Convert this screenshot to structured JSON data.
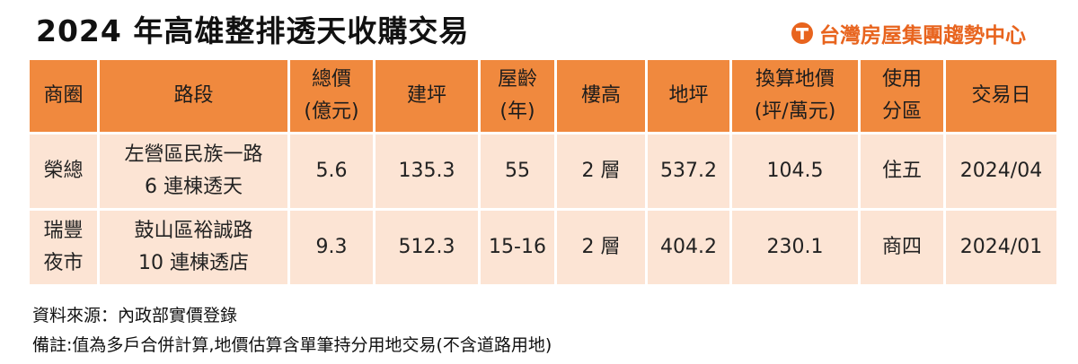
{
  "header": {
    "title": "2024 年高雄整排透天收購交易",
    "brand": "台灣房屋集團趨勢中心"
  },
  "table": {
    "columns": [
      "商圈",
      "路段",
      "總價\n(億元)",
      "建坪",
      "屋齡\n(年)",
      "樓高",
      "地坪",
      "換算地價\n(坪/萬元)",
      "使用\n分區",
      "交易日"
    ],
    "rows": [
      [
        "榮總",
        "左營區民族一路\n6 連棟透天",
        "5.6",
        "135.3",
        "55",
        "2 層",
        "537.2",
        "104.5",
        "住五",
        "2024/04"
      ],
      [
        "瑞豐\n夜市",
        "鼓山區裕誠路\n10 連棟透店",
        "9.3",
        "512.3",
        "15-16",
        "2 層",
        "404.2",
        "230.1",
        "商四",
        "2024/01"
      ]
    ]
  },
  "notes": [
    "資料來源：內政部實價登錄",
    "備註:值為多戶合併計算,地價估算含單筆持分用地交易(不含道路用地)"
  ]
}
